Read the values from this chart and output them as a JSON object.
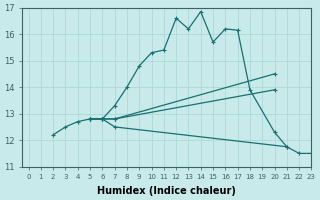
{
  "xlabel": "Humidex (Indice chaleur)",
  "background_color": "#c8eaea",
  "grid_color": "#b0d8d8",
  "line_color": "#1a7070",
  "xlim": [
    -0.5,
    23
  ],
  "ylim": [
    11,
    17
  ],
  "yticks": [
    11,
    12,
    13,
    14,
    15,
    16,
    17
  ],
  "xticks": [
    0,
    1,
    2,
    3,
    4,
    5,
    6,
    7,
    8,
    9,
    10,
    11,
    12,
    13,
    14,
    15,
    16,
    17,
    18,
    19,
    20,
    21,
    22,
    23
  ],
  "lines": [
    {
      "x": [
        2,
        3,
        4,
        5,
        6,
        7,
        8,
        9,
        10,
        11,
        12,
        13,
        14,
        15,
        16,
        17,
        18,
        20,
        21
      ],
      "y": [
        12.2,
        12.5,
        12.7,
        12.8,
        12.8,
        13.3,
        14.0,
        14.8,
        15.3,
        15.4,
        16.6,
        16.2,
        16.85,
        15.7,
        16.2,
        16.15,
        13.9,
        12.3,
        11.75
      ]
    },
    {
      "x": [
        5,
        6,
        7,
        20
      ],
      "y": [
        12.8,
        12.8,
        12.8,
        14.5
      ]
    },
    {
      "x": [
        5,
        6,
        7,
        20
      ],
      "y": [
        12.8,
        12.8,
        12.8,
        13.9
      ]
    },
    {
      "x": [
        5,
        6,
        7,
        21,
        22,
        23
      ],
      "y": [
        12.8,
        12.8,
        12.5,
        11.75,
        11.5,
        11.5
      ]
    }
  ]
}
